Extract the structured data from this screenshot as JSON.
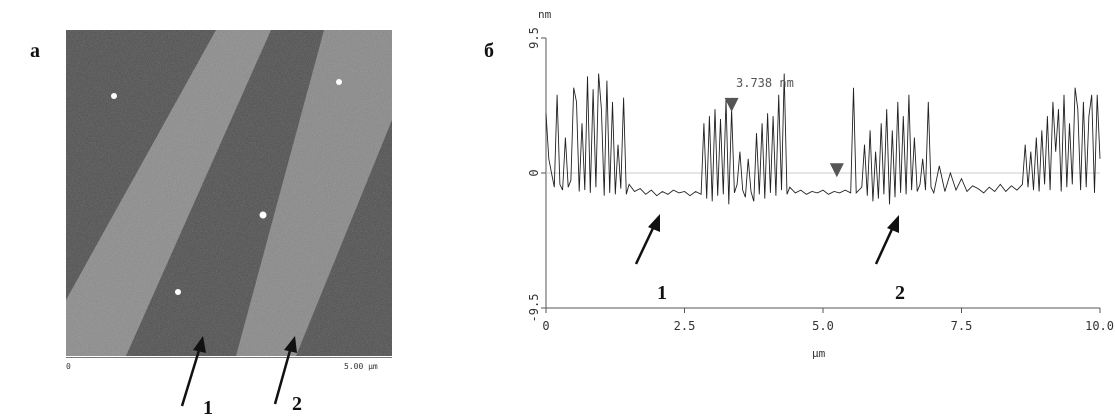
{
  "panel_a": {
    "letter": "а",
    "scale_start": "0",
    "scale_end": "5.00 µm",
    "arrow_labels": [
      "1",
      "2"
    ]
  },
  "panel_b": {
    "letter": "б",
    "measurement": "3.738 nm",
    "arrow_labels": [
      "1",
      "2"
    ]
  },
  "chart_data": {
    "type": "line",
    "title": "",
    "xlabel": "µm",
    "ylabel": "nm",
    "xlim": [
      0,
      10
    ],
    "ylim": [
      -9.5,
      9.5
    ],
    "x_ticks": [
      "0",
      "2.5",
      "5.0",
      "7.5",
      "10.0"
    ],
    "y_ticks": [
      "9.5",
      "0",
      "-9.5"
    ],
    "grid": false,
    "annotations": [
      "3.738 nm"
    ],
    "marker_x": [
      3.35,
      5.25
    ],
    "region_1_x_range": [
      1.5,
      2.8
    ],
    "region_2_x_range": [
      5.5,
      7.0
    ],
    "series": [
      {
        "values": [
          [
            0.0,
            4.2
          ],
          [
            0.05,
            1.0
          ],
          [
            0.1,
            0.0
          ],
          [
            0.15,
            -1.0
          ],
          [
            0.2,
            5.5
          ],
          [
            0.25,
            -0.8
          ],
          [
            0.3,
            -1.2
          ],
          [
            0.35,
            2.5
          ],
          [
            0.4,
            -1.0
          ],
          [
            0.45,
            -0.5
          ],
          [
            0.5,
            6.0
          ],
          [
            0.55,
            5.0
          ],
          [
            0.6,
            -1.3
          ],
          [
            0.65,
            3.5
          ],
          [
            0.7,
            -1.2
          ],
          [
            0.75,
            6.8
          ],
          [
            0.8,
            -1.4
          ],
          [
            0.85,
            5.9
          ],
          [
            0.9,
            -1.0
          ],
          [
            0.95,
            7.0
          ],
          [
            1.0,
            4.5
          ],
          [
            1.05,
            -1.6
          ],
          [
            1.1,
            6.5
          ],
          [
            1.15,
            -1.4
          ],
          [
            1.2,
            5.0
          ],
          [
            1.25,
            -1.5
          ],
          [
            1.3,
            2.0
          ],
          [
            1.35,
            -1.1
          ],
          [
            1.4,
            5.3
          ],
          [
            1.45,
            -1.5
          ],
          [
            1.5,
            -0.8
          ],
          [
            1.6,
            -1.3
          ],
          [
            1.7,
            -1.1
          ],
          [
            1.8,
            -1.5
          ],
          [
            1.9,
            -1.2
          ],
          [
            2.0,
            -1.6
          ],
          [
            2.1,
            -1.3
          ],
          [
            2.2,
            -1.5
          ],
          [
            2.3,
            -1.2
          ],
          [
            2.4,
            -1.4
          ],
          [
            2.5,
            -1.3
          ],
          [
            2.6,
            -1.6
          ],
          [
            2.7,
            -1.3
          ],
          [
            2.8,
            -1.5
          ],
          [
            2.85,
            3.5
          ],
          [
            2.9,
            -1.8
          ],
          [
            2.95,
            4.0
          ],
          [
            3.0,
            -2.0
          ],
          [
            3.05,
            4.5
          ],
          [
            3.1,
            -1.6
          ],
          [
            3.15,
            3.8
          ],
          [
            3.2,
            -1.5
          ],
          [
            3.25,
            5.2
          ],
          [
            3.3,
            -2.2
          ],
          [
            3.35,
            4.5
          ],
          [
            3.4,
            -1.4
          ],
          [
            3.45,
            -0.8
          ],
          [
            3.5,
            1.5
          ],
          [
            3.55,
            -1.2
          ],
          [
            3.6,
            -1.7
          ],
          [
            3.65,
            1.0
          ],
          [
            3.7,
            -1.3
          ],
          [
            3.75,
            -2.0
          ],
          [
            3.8,
            2.8
          ],
          [
            3.85,
            -1.5
          ],
          [
            3.9,
            3.5
          ],
          [
            3.95,
            -1.8
          ],
          [
            4.0,
            4.2
          ],
          [
            4.05,
            -1.4
          ],
          [
            4.1,
            4.0
          ],
          [
            4.15,
            -1.6
          ],
          [
            4.2,
            5.5
          ],
          [
            4.25,
            -1.2
          ],
          [
            4.3,
            7.0
          ],
          [
            4.35,
            -1.5
          ],
          [
            4.4,
            -1.0
          ],
          [
            4.5,
            -1.4
          ],
          [
            4.6,
            -1.2
          ],
          [
            4.7,
            -1.5
          ],
          [
            4.8,
            -1.3
          ],
          [
            4.9,
            -1.4
          ],
          [
            5.0,
            -1.2
          ],
          [
            5.1,
            -1.5
          ],
          [
            5.2,
            -1.3
          ],
          [
            5.3,
            -1.4
          ],
          [
            5.4,
            -1.2
          ],
          [
            5.5,
            -1.4
          ],
          [
            5.55,
            6.0
          ],
          [
            5.6,
            -1.4
          ],
          [
            5.7,
            -1.0
          ],
          [
            5.75,
            2.0
          ],
          [
            5.8,
            -1.6
          ],
          [
            5.85,
            3.0
          ],
          [
            5.9,
            -2.0
          ],
          [
            5.95,
            1.5
          ],
          [
            6.0,
            -1.8
          ],
          [
            6.05,
            3.5
          ],
          [
            6.1,
            -1.5
          ],
          [
            6.15,
            4.5
          ],
          [
            6.2,
            -2.2
          ],
          [
            6.25,
            3.0
          ],
          [
            6.3,
            -1.7
          ],
          [
            6.35,
            5.0
          ],
          [
            6.4,
            -1.4
          ],
          [
            6.45,
            4.0
          ],
          [
            6.5,
            -1.5
          ],
          [
            6.55,
            5.5
          ],
          [
            6.6,
            -1.2
          ],
          [
            6.65,
            2.5
          ],
          [
            6.7,
            -1.3
          ],
          [
            6.75,
            -0.8
          ],
          [
            6.8,
            1.0
          ],
          [
            6.85,
            -1.2
          ],
          [
            6.9,
            5.0
          ],
          [
            6.95,
            -1.0
          ],
          [
            7.0,
            -1.4
          ],
          [
            7.1,
            0.5
          ],
          [
            7.2,
            -1.3
          ],
          [
            7.3,
            0.0
          ],
          [
            7.4,
            -1.2
          ],
          [
            7.5,
            -0.4
          ],
          [
            7.6,
            -1.3
          ],
          [
            7.7,
            -0.9
          ],
          [
            7.8,
            -1.1
          ],
          [
            7.9,
            -1.4
          ],
          [
            8.0,
            -1.0
          ],
          [
            8.1,
            -1.3
          ],
          [
            8.2,
            -0.8
          ],
          [
            8.3,
            -1.3
          ],
          [
            8.4,
            -0.9
          ],
          [
            8.5,
            -1.2
          ],
          [
            8.6,
            -0.8
          ],
          [
            8.65,
            2.0
          ],
          [
            8.7,
            -1.0
          ],
          [
            8.75,
            1.5
          ],
          [
            8.8,
            -1.2
          ],
          [
            8.85,
            2.5
          ],
          [
            8.9,
            -1.3
          ],
          [
            8.95,
            3.0
          ],
          [
            9.0,
            -0.8
          ],
          [
            9.05,
            4.0
          ],
          [
            9.1,
            -1.2
          ],
          [
            9.15,
            5.0
          ],
          [
            9.2,
            1.5
          ],
          [
            9.25,
            4.5
          ],
          [
            9.3,
            -1.3
          ],
          [
            9.35,
            5.5
          ],
          [
            9.4,
            -1.0
          ],
          [
            9.45,
            3.5
          ],
          [
            9.5,
            -0.8
          ],
          [
            9.55,
            6.0
          ],
          [
            9.6,
            4.5
          ],
          [
            9.65,
            -1.2
          ],
          [
            9.7,
            5.0
          ],
          [
            9.75,
            -1.0
          ],
          [
            9.8,
            4.0
          ],
          [
            9.85,
            5.5
          ],
          [
            9.9,
            -1.4
          ],
          [
            9.95,
            5.5
          ],
          [
            10.0,
            1.0
          ]
        ]
      }
    ]
  }
}
